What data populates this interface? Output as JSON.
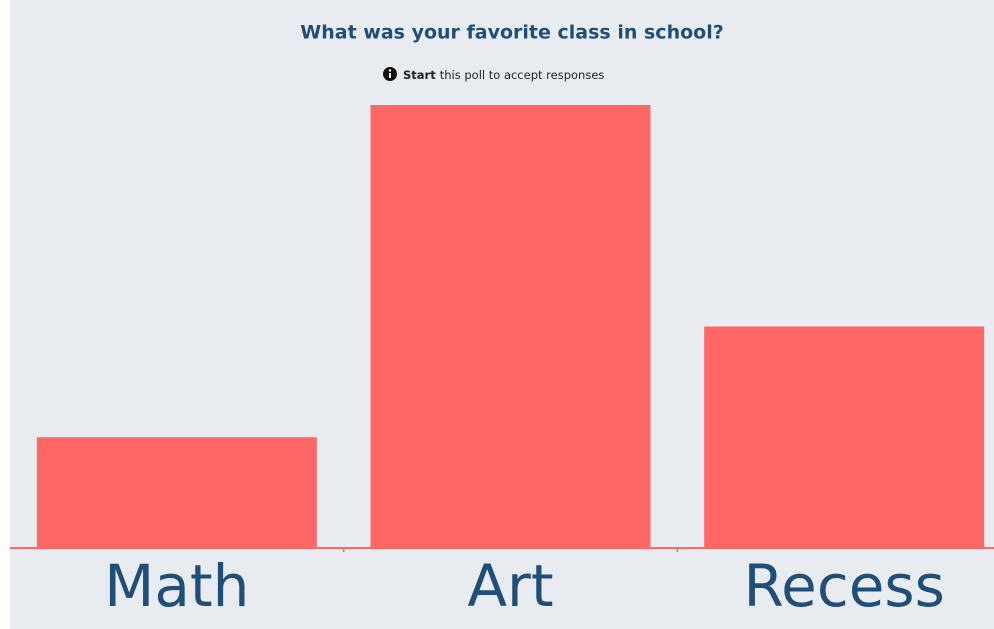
{
  "chart_data": {
    "type": "bar",
    "title": "What was your favorite class in school?",
    "notice": {
      "emphasis": "Start",
      "text": "this poll to accept responses"
    },
    "categories": [
      "Math",
      "Art",
      "Recess"
    ],
    "values": [
      1,
      4,
      2
    ],
    "color": "#ff6666"
  }
}
